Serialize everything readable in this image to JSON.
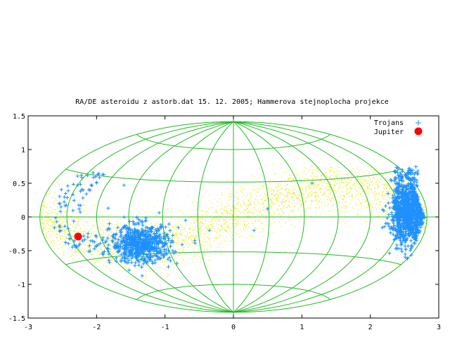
{
  "chart_data": {
    "type": "scatter",
    "title": "RA/DE asteroidu z astorb.dat 15. 12. 2005; Hammerova stejnoplocha projekce",
    "xlim": [
      -3,
      3
    ],
    "ylim": [
      -1.5,
      1.5
    ],
    "x_ticks": [
      "-3",
      "-2",
      "-1",
      "0",
      "1",
      "2",
      "3"
    ],
    "y_ticks": [
      "1.5",
      "1",
      "0.5",
      "0",
      "-0.5",
      "-1",
      "-1.5"
    ],
    "x_tick_values": [
      -3,
      -2,
      -1,
      0,
      1,
      2,
      3
    ],
    "y_tick_values": [
      1.5,
      1,
      0.5,
      0,
      -0.5,
      -1,
      -1.5
    ],
    "legend_position": "top-right",
    "projection": "Hammer equal-area",
    "graticule_longitudes_deg": [
      -180,
      -150,
      -120,
      -90,
      -60,
      -30,
      0,
      30,
      60,
      90,
      120,
      150,
      180
    ],
    "graticule_latitudes_deg": [
      -60,
      -30,
      0,
      30,
      60
    ],
    "series": [
      {
        "name": "",
        "description": "all asteroids (dense band along the ecliptic)",
        "color": "#e6e600",
        "marker": "dot"
      },
      {
        "name": "Trojans",
        "color": "#1e90ff",
        "marker": "plus",
        "clusters": [
          {
            "center": [
              -1.35,
              -0.4
            ],
            "spread": [
              0.22,
              0.14
            ]
          },
          {
            "center": [
              2.55,
              0.05
            ],
            "spread": [
              0.12,
              0.22
            ]
          }
        ]
      },
      {
        "name": "Jupiter",
        "color": "#ff0000",
        "marker": "circle",
        "points": [
          [
            -2.27,
            -0.29
          ]
        ]
      }
    ],
    "grid_color": "#22bb22"
  }
}
